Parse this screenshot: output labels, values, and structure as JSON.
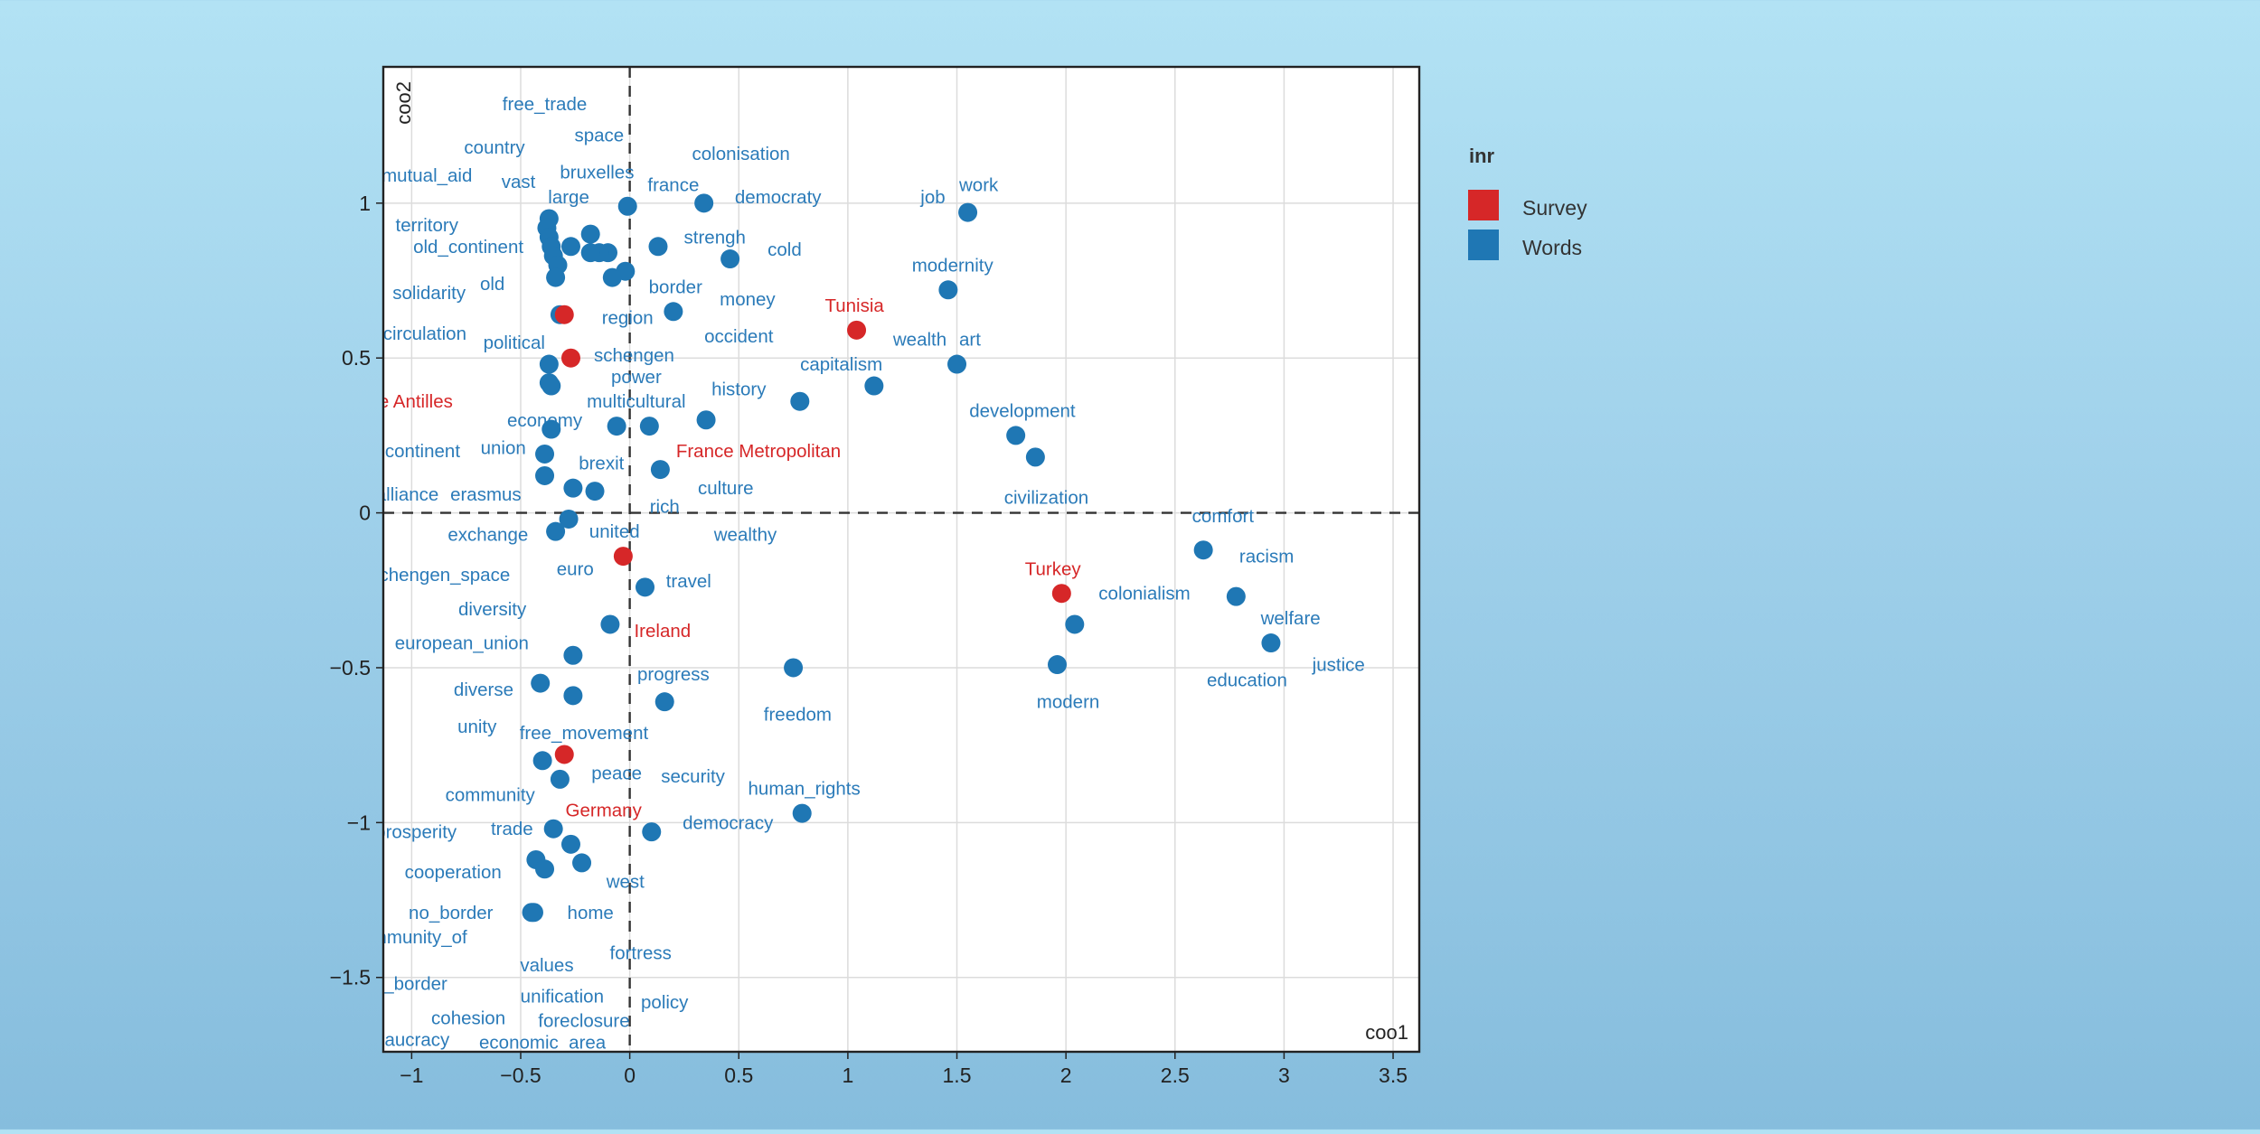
{
  "chart_data": {
    "type": "scatter",
    "xlabel": "coo1",
    "ylabel": "coo2",
    "xlim": [
      -1.13,
      3.62
    ],
    "ylim": [
      -1.74,
      1.44
    ],
    "xticks": [
      -1,
      -0.5,
      0,
      0.5,
      1,
      1.5,
      2,
      2.5,
      3,
      3.5
    ],
    "yticks": [
      -1.5,
      -1,
      -0.5,
      0,
      0.5,
      1
    ],
    "xtick_labels": [
      "−1",
      "−0.5",
      "0",
      "0.5",
      "1",
      "1.5",
      "2",
      "2.5",
      "3",
      "3.5"
    ],
    "ytick_labels": [
      "−1.5",
      "−1",
      "−0.5",
      "0",
      "0.5",
      "1"
    ],
    "grid": true,
    "zero_lines": true,
    "legend": {
      "title": "inr",
      "placement": "right",
      "entries": [
        {
          "name": "Survey",
          "color": "#d62728"
        },
        {
          "name": "Words",
          "color": "#1f77b4"
        }
      ]
    },
    "series": [
      {
        "name": "Survey",
        "color": "#d62728",
        "points": [
          {
            "x": 1.04,
            "y": 0.59
          },
          {
            "x": -0.27,
            "y": 0.5
          },
          {
            "x": -0.3,
            "y": 0.64
          },
          {
            "x": -0.03,
            "y": -0.14
          },
          {
            "x": 1.98,
            "y": -0.26
          },
          {
            "x": -0.3,
            "y": -0.78
          }
        ]
      },
      {
        "name": "Words",
        "color": "#1f77b4",
        "points": [
          {
            "x": 1.55,
            "y": 0.97
          },
          {
            "x": 1.46,
            "y": 0.72
          },
          {
            "x": 1.5,
            "y": 0.48
          },
          {
            "x": 1.12,
            "y": 0.41
          },
          {
            "x": 0.78,
            "y": 0.36
          },
          {
            "x": 1.77,
            "y": 0.25
          },
          {
            "x": 1.86,
            "y": 0.18
          },
          {
            "x": 2.63,
            "y": -0.12
          },
          {
            "x": 2.78,
            "y": -0.27
          },
          {
            "x": 2.04,
            "y": -0.36
          },
          {
            "x": 1.96,
            "y": -0.49
          },
          {
            "x": 2.94,
            "y": -0.42
          },
          {
            "x": 0.75,
            "y": -0.5
          },
          {
            "x": 0.79,
            "y": -0.97
          },
          {
            "x": 0.34,
            "y": 1.0
          },
          {
            "x": 0.46,
            "y": 0.82
          },
          {
            "x": 0.13,
            "y": 0.86
          },
          {
            "x": 0.2,
            "y": 0.65
          },
          {
            "x": 0.35,
            "y": 0.3
          },
          {
            "x": 0.09,
            "y": 0.28
          },
          {
            "x": 0.14,
            "y": 0.14
          },
          {
            "x": 0.07,
            "y": -0.24
          },
          {
            "x": 0.16,
            "y": -0.61
          },
          {
            "x": 0.1,
            "y": -1.03
          },
          {
            "x": -0.01,
            "y": 0.99
          },
          {
            "x": -0.02,
            "y": 0.78
          },
          {
            "x": -0.08,
            "y": 0.76
          },
          {
            "x": -0.1,
            "y": 0.84
          },
          {
            "x": -0.14,
            "y": 0.84
          },
          {
            "x": -0.18,
            "y": 0.84
          },
          {
            "x": -0.18,
            "y": 0.9
          },
          {
            "x": -0.27,
            "y": 0.86
          },
          {
            "x": -0.37,
            "y": 0.95
          },
          {
            "x": -0.38,
            "y": 0.92
          },
          {
            "x": -0.37,
            "y": 0.89
          },
          {
            "x": -0.36,
            "y": 0.86
          },
          {
            "x": -0.35,
            "y": 0.83
          },
          {
            "x": -0.33,
            "y": 0.8
          },
          {
            "x": -0.34,
            "y": 0.76
          },
          {
            "x": -0.32,
            "y": 0.64
          },
          {
            "x": -0.37,
            "y": 0.48
          },
          {
            "x": -0.37,
            "y": 0.42
          },
          {
            "x": -0.36,
            "y": 0.41
          },
          {
            "x": -0.06,
            "y": 0.28
          },
          {
            "x": -0.36,
            "y": 0.27
          },
          {
            "x": -0.39,
            "y": 0.19
          },
          {
            "x": -0.39,
            "y": 0.12
          },
          {
            "x": -0.26,
            "y": 0.08
          },
          {
            "x": -0.16,
            "y": 0.07
          },
          {
            "x": -0.28,
            "y": -0.02
          },
          {
            "x": -0.34,
            "y": -0.06
          },
          {
            "x": -0.09,
            "y": -0.36
          },
          {
            "x": -0.26,
            "y": -0.46
          },
          {
            "x": -0.41,
            "y": -0.55
          },
          {
            "x": -0.26,
            "y": -0.59
          },
          {
            "x": -0.4,
            "y": -0.8
          },
          {
            "x": -0.32,
            "y": -0.86
          },
          {
            "x": -0.35,
            "y": -1.02
          },
          {
            "x": -0.27,
            "y": -1.07
          },
          {
            "x": -0.22,
            "y": -1.13
          },
          {
            "x": -0.43,
            "y": -1.12
          },
          {
            "x": -0.39,
            "y": -1.15
          },
          {
            "x": -0.45,
            "y": -1.29
          },
          {
            "x": -0.44,
            "y": -1.29
          }
        ]
      }
    ],
    "labels": [
      {
        "text": "free_trade",
        "x": -0.39,
        "y": 1.32,
        "group": "Words"
      },
      {
        "text": "space",
        "x": -0.14,
        "y": 1.22,
        "group": "Words"
      },
      {
        "text": "colonisation",
        "x": 0.51,
        "y": 1.16,
        "group": "Words"
      },
      {
        "text": "country",
        "x": -0.62,
        "y": 1.18,
        "group": "Words"
      },
      {
        "text": "mutual_aid",
        "x": -0.93,
        "y": 1.09,
        "group": "Words"
      },
      {
        "text": "bruxelles",
        "x": -0.15,
        "y": 1.1,
        "group": "Words"
      },
      {
        "text": "vast",
        "x": -0.51,
        "y": 1.07,
        "group": "Words"
      },
      {
        "text": "france",
        "x": 0.2,
        "y": 1.06,
        "group": "Words"
      },
      {
        "text": "democraty",
        "x": 0.68,
        "y": 1.02,
        "group": "Words"
      },
      {
        "text": "large",
        "x": -0.28,
        "y": 1.02,
        "group": "Words"
      },
      {
        "text": "job",
        "x": 1.39,
        "y": 1.02,
        "group": "Words"
      },
      {
        "text": "work",
        "x": 1.6,
        "y": 1.06,
        "group": "Words"
      },
      {
        "text": "territory",
        "x": -0.93,
        "y": 0.93,
        "group": "Words"
      },
      {
        "text": "strengh",
        "x": 0.39,
        "y": 0.89,
        "group": "Words"
      },
      {
        "text": "old_continent",
        "x": -0.74,
        "y": 0.86,
        "group": "Words"
      },
      {
        "text": "cold",
        "x": 0.71,
        "y": 0.85,
        "group": "Words"
      },
      {
        "text": "modernity",
        "x": 1.48,
        "y": 0.8,
        "group": "Words"
      },
      {
        "text": "old",
        "x": -0.63,
        "y": 0.74,
        "group": "Words"
      },
      {
        "text": "border",
        "x": 0.21,
        "y": 0.73,
        "group": "Words"
      },
      {
        "text": "solidarity",
        "x": -0.92,
        "y": 0.71,
        "group": "Words"
      },
      {
        "text": "money",
        "x": 0.54,
        "y": 0.69,
        "group": "Words"
      },
      {
        "text": "region",
        "x": -0.01,
        "y": 0.63,
        "group": "Words"
      },
      {
        "text": "occident",
        "x": 0.5,
        "y": 0.57,
        "group": "Words"
      },
      {
        "text": "wealth",
        "x": 1.33,
        "y": 0.56,
        "group": "Words"
      },
      {
        "text": "art",
        "x": 1.56,
        "y": 0.56,
        "group": "Words"
      },
      {
        "text": "circulation",
        "x": -0.94,
        "y": 0.58,
        "group": "Words"
      },
      {
        "text": "political",
        "x": -0.53,
        "y": 0.55,
        "group": "Words"
      },
      {
        "text": "schengen",
        "x": 0.02,
        "y": 0.51,
        "group": "Words"
      },
      {
        "text": "capitalism",
        "x": 0.97,
        "y": 0.48,
        "group": "Words"
      },
      {
        "text": "power",
        "x": 0.03,
        "y": 0.44,
        "group": "Words"
      },
      {
        "text": "history",
        "x": 0.5,
        "y": 0.4,
        "group": "Words"
      },
      {
        "text": "multicultural",
        "x": 0.03,
        "y": 0.36,
        "group": "Words"
      },
      {
        "text": "development",
        "x": 1.8,
        "y": 0.33,
        "group": "Words"
      },
      {
        "text": "economy",
        "x": -0.39,
        "y": 0.3,
        "group": "Words"
      },
      {
        "text": "union",
        "x": -0.58,
        "y": 0.21,
        "group": "Words"
      },
      {
        "text": "continent",
        "x": -0.95,
        "y": 0.2,
        "group": "Words"
      },
      {
        "text": "brexit",
        "x": -0.13,
        "y": 0.16,
        "group": "Words"
      },
      {
        "text": "culture",
        "x": 0.44,
        "y": 0.08,
        "group": "Words"
      },
      {
        "text": "erasmus",
        "x": -0.66,
        "y": 0.06,
        "group": "Words"
      },
      {
        "text": "alliance",
        "x": -1.02,
        "y": 0.06,
        "group": "Words"
      },
      {
        "text": "rich",
        "x": 0.16,
        "y": 0.02,
        "group": "Words"
      },
      {
        "text": "civilization",
        "x": 1.91,
        "y": 0.05,
        "group": "Words"
      },
      {
        "text": "comfort",
        "x": 2.72,
        "y": -0.01,
        "group": "Words"
      },
      {
        "text": "united",
        "x": -0.07,
        "y": -0.06,
        "group": "Words"
      },
      {
        "text": "exchange",
        "x": -0.65,
        "y": -0.07,
        "group": "Words"
      },
      {
        "text": "wealthy",
        "x": 0.53,
        "y": -0.07,
        "group": "Words"
      },
      {
        "text": "racism",
        "x": 2.92,
        "y": -0.14,
        "group": "Words"
      },
      {
        "text": "euro",
        "x": -0.25,
        "y": -0.18,
        "group": "Words"
      },
      {
        "text": "schengen_space",
        "x": -0.87,
        "y": -0.2,
        "group": "Words"
      },
      {
        "text": "travel",
        "x": 0.27,
        "y": -0.22,
        "group": "Words"
      },
      {
        "text": "colonialism",
        "x": 2.36,
        "y": -0.26,
        "group": "Words"
      },
      {
        "text": "diversity",
        "x": -0.63,
        "y": -0.31,
        "group": "Words"
      },
      {
        "text": "welfare",
        "x": 3.03,
        "y": -0.34,
        "group": "Words"
      },
      {
        "text": "european_union",
        "x": -0.77,
        "y": -0.42,
        "group": "Words"
      },
      {
        "text": "justice",
        "x": 3.25,
        "y": -0.49,
        "group": "Words"
      },
      {
        "text": "progress",
        "x": 0.2,
        "y": -0.52,
        "group": "Words"
      },
      {
        "text": "education",
        "x": 2.83,
        "y": -0.54,
        "group": "Words"
      },
      {
        "text": "diverse",
        "x": -0.67,
        "y": -0.57,
        "group": "Words"
      },
      {
        "text": "modern",
        "x": 2.01,
        "y": -0.61,
        "group": "Words"
      },
      {
        "text": "freedom",
        "x": 0.77,
        "y": -0.65,
        "group": "Words"
      },
      {
        "text": "unity",
        "x": -0.7,
        "y": -0.69,
        "group": "Words"
      },
      {
        "text": "free_movement",
        "x": -0.21,
        "y": -0.71,
        "group": "Words"
      },
      {
        "text": "peace",
        "x": -0.06,
        "y": -0.84,
        "group": "Words"
      },
      {
        "text": "security",
        "x": 0.29,
        "y": -0.85,
        "group": "Words"
      },
      {
        "text": "human_rights",
        "x": 0.8,
        "y": -0.89,
        "group": "Words"
      },
      {
        "text": "community",
        "x": -0.64,
        "y": -0.91,
        "group": "Words"
      },
      {
        "text": "democracy",
        "x": 0.45,
        "y": -1.0,
        "group": "Words"
      },
      {
        "text": "trade",
        "x": -0.54,
        "y": -1.02,
        "group": "Words"
      },
      {
        "text": "prosperity",
        "x": -0.98,
        "y": -1.03,
        "group": "Words"
      },
      {
        "text": "cooperation",
        "x": -0.81,
        "y": -1.16,
        "group": "Words"
      },
      {
        "text": "west",
        "x": -0.02,
        "y": -1.19,
        "group": "Words"
      },
      {
        "text": "no_border",
        "x": -0.82,
        "y": -1.29,
        "group": "Words"
      },
      {
        "text": "home",
        "x": -0.18,
        "y": -1.29,
        "group": "Words"
      },
      {
        "text": "community_of",
        "x": -1.01,
        "y": -1.37,
        "group": "Words"
      },
      {
        "text": "fortress",
        "x": 0.05,
        "y": -1.42,
        "group": "Words"
      },
      {
        "text": "values",
        "x": -0.38,
        "y": -1.46,
        "group": "Words"
      },
      {
        "text": "no_border",
        "x": -1.03,
        "y": -1.52,
        "group": "Words"
      },
      {
        "text": "unification",
        "x": -0.31,
        "y": -1.56,
        "group": "Words"
      },
      {
        "text": "policy",
        "x": 0.16,
        "y": -1.58,
        "group": "Words"
      },
      {
        "text": "cohesion",
        "x": -0.74,
        "y": -1.63,
        "group": "Words"
      },
      {
        "text": "foreclosure",
        "x": -0.21,
        "y": -1.64,
        "group": "Words"
      },
      {
        "text": "bureaucracy",
        "x": -1.06,
        "y": -1.7,
        "group": "Words"
      },
      {
        "text": "economic_area",
        "x": -0.4,
        "y": -1.71,
        "group": "Words"
      },
      {
        "text": "Tunisia",
        "x": 1.03,
        "y": 0.67,
        "group": "Survey"
      },
      {
        "text": "France Antilles",
        "x": -1.09,
        "y": 0.36,
        "group": "Survey"
      },
      {
        "text": "France Metropolitan",
        "x": 0.59,
        "y": 0.2,
        "group": "Survey"
      },
      {
        "text": "Turkey",
        "x": 1.94,
        "y": -0.18,
        "group": "Survey"
      },
      {
        "text": "Ireland",
        "x": 0.15,
        "y": -0.38,
        "group": "Survey"
      },
      {
        "text": "Germany",
        "x": -0.12,
        "y": -0.96,
        "group": "Survey"
      }
    ]
  }
}
